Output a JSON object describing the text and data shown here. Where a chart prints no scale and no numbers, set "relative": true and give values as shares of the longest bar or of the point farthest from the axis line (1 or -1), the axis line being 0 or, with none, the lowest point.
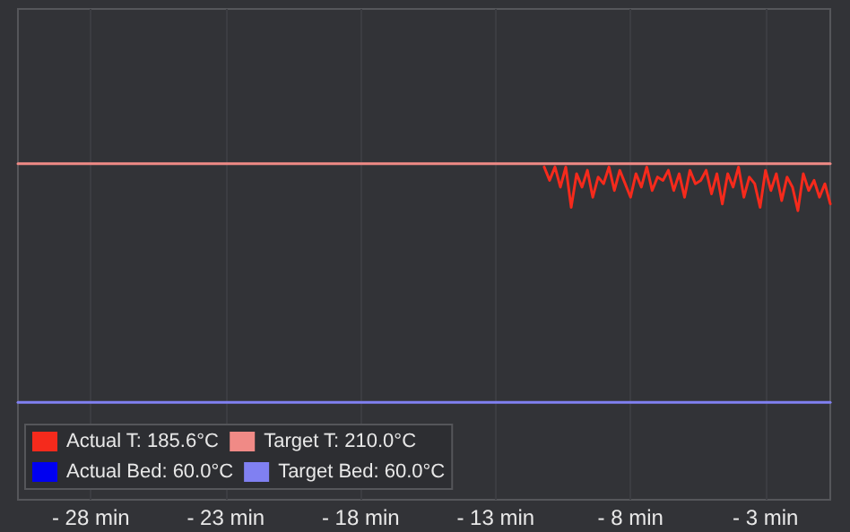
{
  "chart_data": {
    "type": "line",
    "relative": true,
    "xlim": [
      -30.7,
      -0.6
    ],
    "xticks": [
      {
        "value": -28,
        "label": "- 28 min"
      },
      {
        "value": -23,
        "label": "- 23 min"
      },
      {
        "value": -18,
        "label": "- 18 min"
      },
      {
        "value": -13,
        "label": "- 13 min"
      },
      {
        "value": -8,
        "label": "- 8 min"
      },
      {
        "value": -3,
        "label": "- 3 min"
      }
    ],
    "grid": true,
    "legend": "bottom left",
    "marker": "none",
    "line_style": "solid",
    "series": [
      {
        "name": "Actual T: 185.6°C",
        "color": "#f52a1c",
        "x": [
          -11.2,
          -11,
          -10.8,
          -10.6,
          -10.4,
          -10.2,
          -10,
          -9.8,
          -9.6,
          -9.4,
          -9.2,
          -9,
          -8.8,
          -8.6,
          -8.4,
          -8.2,
          -8,
          -7.8,
          -7.6,
          -7.4,
          -7.2,
          -7,
          -6.8,
          -6.6,
          -6.4,
          -6.2,
          -6,
          -5.8,
          -5.6,
          -5.4,
          -5.2,
          -5,
          -4.8,
          -4.6,
          -4.4,
          -4.2,
          -4,
          -3.8,
          -3.6,
          -3.4,
          -3.2,
          -3,
          -2.8,
          -2.6,
          -2.4,
          -2.2,
          -2,
          -1.8,
          -1.6,
          -1.4,
          -1.2,
          -1,
          -0.8,
          -0.6
        ],
        "values": [
          0.99,
          0.95,
          0.99,
          0.93,
          0.99,
          0.87,
          0.97,
          0.93,
          0.98,
          0.9,
          0.96,
          0.94,
          0.99,
          0.92,
          0.98,
          0.94,
          0.9,
          0.97,
          0.93,
          0.99,
          0.92,
          0.96,
          0.95,
          0.98,
          0.92,
          0.97,
          0.9,
          0.98,
          0.94,
          0.95,
          0.98,
          0.91,
          0.97,
          0.88,
          0.97,
          0.93,
          0.99,
          0.9,
          0.96,
          0.94,
          0.87,
          0.98,
          0.92,
          0.97,
          0.89,
          0.96,
          0.93,
          0.86,
          0.97,
          0.92,
          0.95,
          0.9,
          0.94,
          0.88
        ]
      },
      {
        "name": "Target T: 210.0°C",
        "color": "#f08a86",
        "x": [
          -30.7,
          -0.6
        ],
        "values": [
          1,
          1
        ]
      },
      {
        "name": "Actual Bed: 60.0°C",
        "color": "#0000f0"
      },
      {
        "name": "Target Bed: 60.0°C",
        "color": "#8080f2",
        "x": [
          -30.7,
          -0.6
        ],
        "values": [
          0.29,
          0.29
        ]
      }
    ]
  }
}
